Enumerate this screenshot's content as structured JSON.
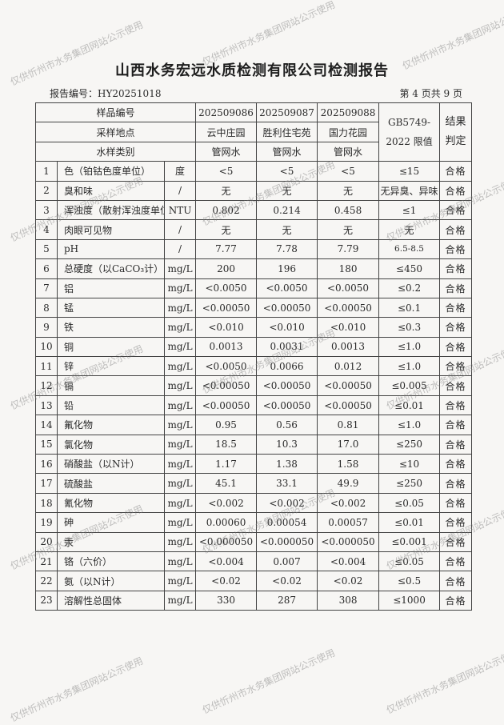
{
  "title": "山西水务宏远水质检测有限公司检测报告",
  "report_no": "报告编号：HY20251018",
  "page_no": "第 4 页共 9 页",
  "watermark": "仅供忻州市水务集团网站公示使用",
  "header": {
    "sample_no_label": "样品编号",
    "location_label": "采样地点",
    "type_label": "水样类别",
    "limit_label_1": "GB5749-",
    "limit_label_2": "2022 限值",
    "result_label_1": "结果",
    "result_label_2": "判定",
    "samples": [
      {
        "no": "202509086",
        "location": "云中庄园",
        "type": "管网水"
      },
      {
        "no": "202509087",
        "location": "胜利住宅苑",
        "type": "管网水"
      },
      {
        "no": "202509088",
        "location": "国力花园",
        "type": "管网水"
      }
    ]
  },
  "rows": [
    {
      "n": "1",
      "item": "色（铂钴色度单位）",
      "unit": "度",
      "v1": "<5",
      "v2": "<5",
      "v3": "<5",
      "limit": "≤15",
      "result": "合格"
    },
    {
      "n": "2",
      "item": "臭和味",
      "unit": "/",
      "v1": "无",
      "v2": "无",
      "v3": "无",
      "limit": "无异臭、异味",
      "result": "合格"
    },
    {
      "n": "3",
      "item": "浑浊度（散射浑浊度单位）",
      "unit": "NTU",
      "v1": "0.802",
      "v2": "0.214",
      "v3": "0.458",
      "limit": "≤1",
      "result": "合格"
    },
    {
      "n": "4",
      "item": "肉眼可见物",
      "unit": "/",
      "v1": "无",
      "v2": "无",
      "v3": "无",
      "limit": "无",
      "result": "合格"
    },
    {
      "n": "5",
      "item": "pH",
      "unit": "/",
      "v1": "7.77",
      "v2": "7.78",
      "v3": "7.79",
      "limit": "6.5-8.5",
      "result": "合格"
    },
    {
      "n": "6",
      "item": "总硬度（以CaCO₃计）",
      "unit": "mg/L",
      "v1": "200",
      "v2": "196",
      "v3": "180",
      "limit": "≤450",
      "result": "合格"
    },
    {
      "n": "7",
      "item": "铝",
      "unit": "mg/L",
      "v1": "<0.0050",
      "v2": "<0.0050",
      "v3": "<0.0050",
      "limit": "≤0.2",
      "result": "合格"
    },
    {
      "n": "8",
      "item": "锰",
      "unit": "mg/L",
      "v1": "<0.00050",
      "v2": "<0.00050",
      "v3": "<0.00050",
      "limit": "≤0.1",
      "result": "合格"
    },
    {
      "n": "9",
      "item": "铁",
      "unit": "mg/L",
      "v1": "<0.010",
      "v2": "<0.010",
      "v3": "<0.010",
      "limit": "≤0.3",
      "result": "合格"
    },
    {
      "n": "10",
      "item": "铜",
      "unit": "mg/L",
      "v1": "0.0013",
      "v2": "0.0031",
      "v3": "0.0013",
      "limit": "≤1.0",
      "result": "合格"
    },
    {
      "n": "11",
      "item": "锌",
      "unit": "mg/L",
      "v1": "<0.0050",
      "v2": "0.0066",
      "v3": "0.012",
      "limit": "≤1.0",
      "result": "合格"
    },
    {
      "n": "12",
      "item": "镉",
      "unit": "mg/L",
      "v1": "<0.00050",
      "v2": "<0.00050",
      "v3": "<0.00050",
      "limit": "≤0.005",
      "result": "合格"
    },
    {
      "n": "13",
      "item": "铅",
      "unit": "mg/L",
      "v1": "<0.00050",
      "v2": "<0.00050",
      "v3": "<0.00050",
      "limit": "≤0.01",
      "result": "合格"
    },
    {
      "n": "14",
      "item": "氟化物",
      "unit": "mg/L",
      "v1": "0.95",
      "v2": "0.56",
      "v3": "0.81",
      "limit": "≤1.0",
      "result": "合格"
    },
    {
      "n": "15",
      "item": "氯化物",
      "unit": "mg/L",
      "v1": "18.5",
      "v2": "10.3",
      "v3": "17.0",
      "limit": "≤250",
      "result": "合格"
    },
    {
      "n": "16",
      "item": "硝酸盐（以N计）",
      "unit": "mg/L",
      "v1": "1.17",
      "v2": "1.38",
      "v3": "1.58",
      "limit": "≤10",
      "result": "合格"
    },
    {
      "n": "17",
      "item": "硫酸盐",
      "unit": "mg/L",
      "v1": "45.1",
      "v2": "33.1",
      "v3": "49.9",
      "limit": "≤250",
      "result": "合格"
    },
    {
      "n": "18",
      "item": "氰化物",
      "unit": "mg/L",
      "v1": "<0.002",
      "v2": "<0.002",
      "v3": "<0.002",
      "limit": "≤0.05",
      "result": "合格"
    },
    {
      "n": "19",
      "item": "砷",
      "unit": "mg/L",
      "v1": "0.00060",
      "v2": "0.00054",
      "v3": "0.00057",
      "limit": "≤0.01",
      "result": "合格"
    },
    {
      "n": "20",
      "item": "汞",
      "unit": "mg/L",
      "v1": "<0.000050",
      "v2": "<0.000050",
      "v3": "<0.000050",
      "limit": "≤0.001",
      "result": "合格"
    },
    {
      "n": "21",
      "item": "铬（六价）",
      "unit": "mg/L",
      "v1": "<0.004",
      "v2": "0.007",
      "v3": "<0.004",
      "limit": "≤0.05",
      "result": "合格"
    },
    {
      "n": "22",
      "item": "氨（以N计）",
      "unit": "mg/L",
      "v1": "<0.02",
      "v2": "<0.02",
      "v3": "<0.02",
      "limit": "≤0.5",
      "result": "合格"
    },
    {
      "n": "23",
      "item": "溶解性总固体",
      "unit": "mg/L",
      "v1": "330",
      "v2": "287",
      "v3": "308",
      "limit": "≤1000",
      "result": "合格"
    }
  ]
}
